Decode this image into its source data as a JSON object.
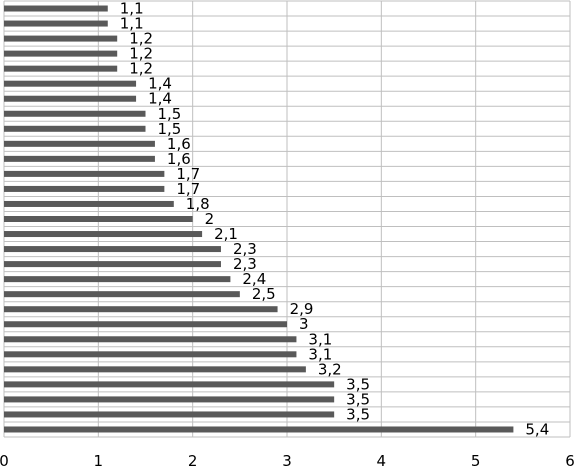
{
  "chart_data": {
    "type": "bar",
    "orientation": "horizontal",
    "categories": [
      "",
      "",
      "",
      "",
      "",
      "",
      "",
      "",
      "",
      "",
      "",
      "",
      "",
      "",
      "",
      "",
      "",
      "",
      "",
      "",
      "",
      "",
      "",
      "",
      "",
      "",
      "",
      "",
      ""
    ],
    "values": [
      1.1,
      1.1,
      1.2,
      1.2,
      1.2,
      1.4,
      1.4,
      1.5,
      1.5,
      1.6,
      1.6,
      1.7,
      1.7,
      1.8,
      2.0,
      2.1,
      2.3,
      2.3,
      2.4,
      2.5,
      2.9,
      3.0,
      3.1,
      3.1,
      3.2,
      3.5,
      3.5,
      3.5,
      5.4
    ],
    "data_labels": [
      "1,1",
      "1,1",
      "1,2",
      "1,2",
      "1,2",
      "1,4",
      "1,4",
      "1,5",
      "1,5",
      "1,6",
      "1,6",
      "1,7",
      "1,7",
      "1,8",
      "2",
      "2,1",
      "2,3",
      "2,3",
      "2,4",
      "2,5",
      "2,9",
      "3",
      "3,1",
      "3,1",
      "3,2",
      "3,5",
      "3,5",
      "3,5",
      "5,4"
    ],
    "x_ticks": [
      "0",
      "1",
      "2",
      "3",
      "4",
      "5",
      "6"
    ],
    "xlim": [
      0,
      6
    ],
    "grid": true,
    "bar_color": "#595959",
    "grid_color": "#bfbfbf",
    "title": "",
    "xlabel": "",
    "ylabel": ""
  }
}
